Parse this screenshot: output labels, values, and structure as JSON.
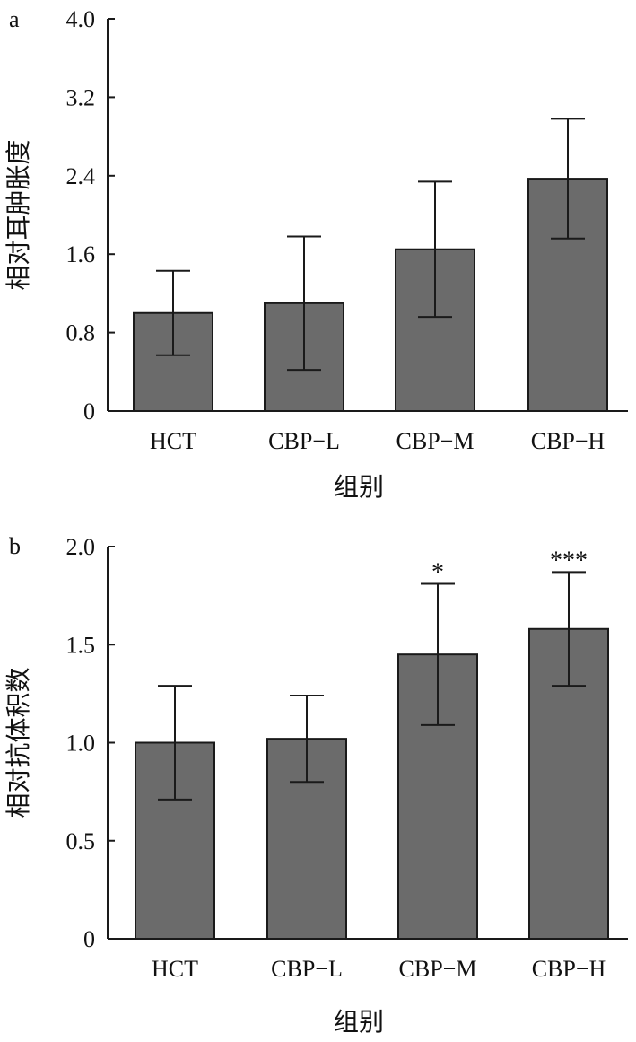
{
  "chart_data": [
    {
      "type": "bar",
      "panel": "a",
      "categories": [
        "HCT",
        "CBP−L",
        "CBP−M",
        "CBP−H"
      ],
      "values": [
        1.0,
        1.1,
        1.65,
        2.37
      ],
      "errors": [
        0.43,
        0.68,
        0.69,
        0.61
      ],
      "significance": [
        "",
        "",
        "",
        ""
      ],
      "xlabel": "组别",
      "ylabel": "相对耳肿胀度",
      "ylim": [
        0,
        4.0
      ],
      "yticks": [
        0,
        0.8,
        1.6,
        2.4,
        3.2,
        4.0
      ],
      "ytick_labels": [
        "0",
        "0.8",
        "1.6",
        "2.4",
        "3.2",
        "4.0"
      ],
      "bar_color": "#6b6b6b",
      "grid": false
    },
    {
      "type": "bar",
      "panel": "b",
      "categories": [
        "HCT",
        "CBP−L",
        "CBP−M",
        "CBP−H"
      ],
      "values": [
        1.0,
        1.02,
        1.45,
        1.58
      ],
      "errors": [
        0.29,
        0.22,
        0.36,
        0.29
      ],
      "significance": [
        "",
        "",
        "*",
        "***"
      ],
      "xlabel": "组别",
      "ylabel": "相对抗体积数",
      "ylim": [
        0,
        2.0
      ],
      "yticks": [
        0,
        0.5,
        1.0,
        1.5,
        2.0
      ],
      "ytick_labels": [
        "0",
        "0.5",
        "1.0",
        "1.5",
        "2.0"
      ],
      "bar_color": "#6b6b6b",
      "grid": false
    }
  ]
}
